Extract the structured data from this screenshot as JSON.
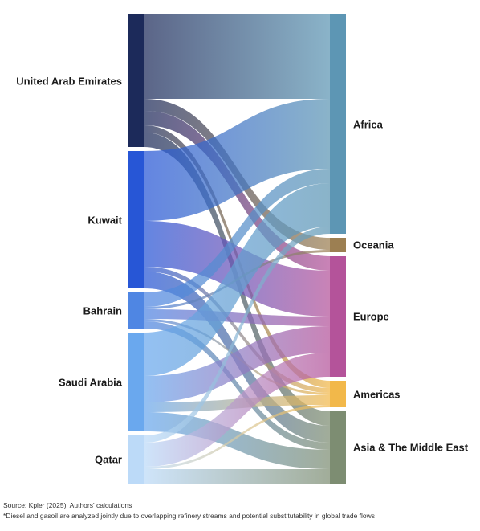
{
  "chart_data": {
    "type": "sankey",
    "sources": [
      {
        "name": "United Arab Emirates",
        "color": "#1c2a5a"
      },
      {
        "name": "Kuwait",
        "color": "#2756d6"
      },
      {
        "name": "Bahrain",
        "color": "#4f86e3"
      },
      {
        "name": "Saudi Arabia",
        "color": "#6aa8ee"
      },
      {
        "name": "Qatar",
        "color": "#bcdaf8"
      }
    ],
    "targets": [
      {
        "name": "Africa",
        "color": "#5d96b4"
      },
      {
        "name": "Oceania",
        "color": "#9c7f52"
      },
      {
        "name": "Europe",
        "color": "#b4539a"
      },
      {
        "name": "Americas",
        "color": "#f2b84a"
      },
      {
        "name": "Asia & The Middle East",
        "color": "#7d8d72"
      }
    ],
    "flows": [
      {
        "source": "United Arab Emirates",
        "target": "Africa",
        "value": 35
      },
      {
        "source": "United Arab Emirates",
        "target": "Oceania",
        "value": 5
      },
      {
        "source": "United Arab Emirates",
        "target": "Europe",
        "value": 6
      },
      {
        "source": "United Arab Emirates",
        "target": "Americas",
        "value": 3
      },
      {
        "source": "United Arab Emirates",
        "target": "Asia & The Middle East",
        "value": 6
      },
      {
        "source": "Kuwait",
        "target": "Africa",
        "value": 29
      },
      {
        "source": "Kuwait",
        "target": "Europe",
        "value": 19
      },
      {
        "source": "Kuwait",
        "target": "Americas",
        "value": 2
      },
      {
        "source": "Kuwait",
        "target": "Asia & The Middle East",
        "value": 7
      },
      {
        "source": "Bahrain",
        "target": "Africa",
        "value": 6
      },
      {
        "source": "Bahrain",
        "target": "Oceania",
        "value": 1
      },
      {
        "source": "Bahrain",
        "target": "Europe",
        "value": 4
      },
      {
        "source": "Bahrain",
        "target": "Americas",
        "value": 1
      },
      {
        "source": "Bahrain",
        "target": "Asia & The Middle East",
        "value": 3
      },
      {
        "source": "Saudi Arabia",
        "target": "Africa",
        "value": 18
      },
      {
        "source": "Saudi Arabia",
        "target": "Europe",
        "value": 11
      },
      {
        "source": "Saudi Arabia",
        "target": "Americas",
        "value": 4
      },
      {
        "source": "Saudi Arabia",
        "target": "Asia & The Middle East",
        "value": 8
      },
      {
        "source": "Qatar",
        "target": "Africa",
        "value": 3
      },
      {
        "source": "Qatar",
        "target": "Europe",
        "value": 10
      },
      {
        "source": "Qatar",
        "target": "Americas",
        "value": 1
      },
      {
        "source": "Qatar",
        "target": "Asia & The Middle East",
        "value": 6
      }
    ]
  },
  "footer": {
    "source": "Source: Kpler (2025), Authors' calculations",
    "note": "*Diesel and gasoil are analyzed jointly due to overlapping refinery streams and potential substitutability in global trade flows"
  }
}
